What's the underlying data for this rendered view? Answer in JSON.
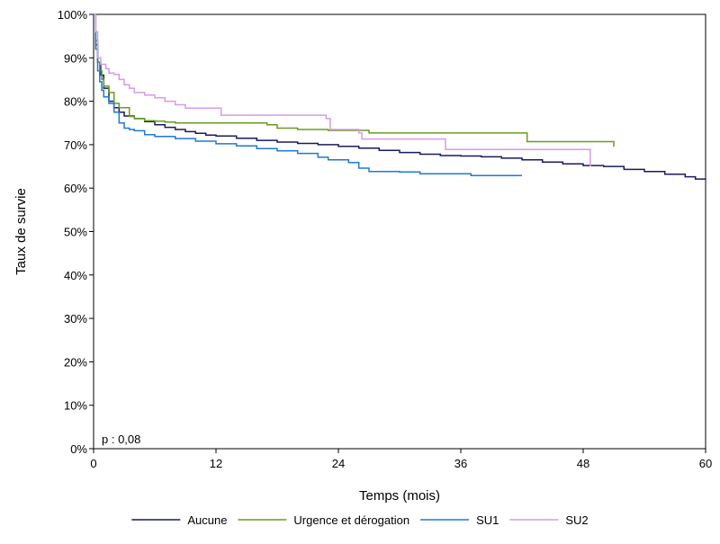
{
  "chart_data": {
    "type": "line",
    "step": true,
    "xlabel": "Temps (mois)",
    "ylabel": "Taux de survie",
    "xlim": [
      0,
      60
    ],
    "ylim": [
      0,
      100
    ],
    "x_ticks": [
      0,
      12,
      24,
      36,
      48,
      60
    ],
    "y_ticks": [
      0,
      10,
      20,
      30,
      40,
      50,
      60,
      70,
      80,
      90,
      100
    ],
    "y_tick_labels": [
      "0%",
      "10%",
      "20%",
      "30%",
      "40%",
      "50%",
      "60%",
      "70%",
      "80%",
      "90%",
      "100%"
    ],
    "grid": false,
    "legend_position": "bottom",
    "annotation": "p : 0,08",
    "series": [
      {
        "name": "Aucune",
        "color": "#1a1a5e",
        "points": [
          [
            0,
            100
          ],
          [
            0.2,
            93
          ],
          [
            0.4,
            89
          ],
          [
            0.7,
            86
          ],
          [
            1,
            83
          ],
          [
            1.5,
            80
          ],
          [
            2,
            78.5
          ],
          [
            2.5,
            77.5
          ],
          [
            3,
            76.6
          ],
          [
            4,
            76
          ],
          [
            5,
            75.3
          ],
          [
            6,
            74.6
          ],
          [
            7,
            74
          ],
          [
            8,
            73.5
          ],
          [
            9,
            73
          ],
          [
            10,
            72.6
          ],
          [
            11,
            72.2
          ],
          [
            12,
            72
          ],
          [
            14,
            71.5
          ],
          [
            16,
            71
          ],
          [
            18,
            70.6
          ],
          [
            20,
            70.3
          ],
          [
            22,
            70
          ],
          [
            24,
            69.6
          ],
          [
            26,
            69.2
          ],
          [
            28,
            68.7
          ],
          [
            30,
            68.2
          ],
          [
            32,
            67.8
          ],
          [
            34,
            67.5
          ],
          [
            36,
            67.4
          ],
          [
            38,
            67.2
          ],
          [
            40,
            66.9
          ],
          [
            42,
            66.5
          ],
          [
            44,
            66
          ],
          [
            46,
            65.6
          ],
          [
            48,
            65.2
          ],
          [
            50,
            65
          ],
          [
            52,
            64.3
          ],
          [
            54,
            63.8
          ],
          [
            56,
            63.2
          ],
          [
            58,
            62.6
          ],
          [
            59,
            62.1
          ],
          [
            60,
            62
          ]
        ]
      },
      {
        "name": "Urgence et dérogation",
        "color": "#6a9a1f",
        "points": [
          [
            0,
            100
          ],
          [
            0.2,
            94
          ],
          [
            0.4,
            89
          ],
          [
            0.6,
            87
          ],
          [
            0.8,
            85
          ],
          [
            1,
            83.5
          ],
          [
            1.5,
            82
          ],
          [
            2,
            79.5
          ],
          [
            2.5,
            78.5
          ],
          [
            3,
            78.5
          ],
          [
            3.5,
            76.5
          ],
          [
            4,
            76
          ],
          [
            5,
            75.5
          ],
          [
            6,
            75.4
          ],
          [
            7,
            75.2
          ],
          [
            8,
            75
          ],
          [
            10,
            75
          ],
          [
            13,
            75
          ],
          [
            16,
            75
          ],
          [
            17,
            74.6
          ],
          [
            18,
            73.8
          ],
          [
            20,
            73.5
          ],
          [
            22,
            73.5
          ],
          [
            23,
            73.3
          ],
          [
            26,
            73.3
          ],
          [
            27,
            72.7
          ],
          [
            30,
            72.7
          ],
          [
            35,
            72.7
          ],
          [
            38,
            72.7
          ],
          [
            42,
            72.7
          ],
          [
            42.5,
            70.7
          ],
          [
            48,
            70.7
          ],
          [
            50,
            70.7
          ],
          [
            51,
            69.5
          ]
        ]
      },
      {
        "name": "SU1",
        "color": "#1f78d8",
        "points": [
          [
            0,
            100
          ],
          [
            0.2,
            92
          ],
          [
            0.4,
            87
          ],
          [
            0.6,
            84.5
          ],
          [
            0.8,
            82.5
          ],
          [
            1,
            81
          ],
          [
            1.5,
            79.5
          ],
          [
            2,
            77.5
          ],
          [
            2.5,
            75
          ],
          [
            3,
            73.8
          ],
          [
            3.5,
            73.5
          ],
          [
            4,
            73.2
          ],
          [
            5,
            72.3
          ],
          [
            6,
            71.9
          ],
          [
            8,
            71.4
          ],
          [
            10,
            70.8
          ],
          [
            12,
            70.2
          ],
          [
            14,
            69.7
          ],
          [
            16,
            69.1
          ],
          [
            18,
            68.6
          ],
          [
            20,
            68
          ],
          [
            22,
            67.1
          ],
          [
            23,
            66.5
          ],
          [
            25,
            65.9
          ],
          [
            26,
            64.6
          ],
          [
            27,
            63.8
          ],
          [
            30,
            63.7
          ],
          [
            32,
            63.3
          ],
          [
            36,
            63.3
          ],
          [
            37,
            62.9
          ],
          [
            42,
            62.9
          ]
        ]
      },
      {
        "name": "SU2",
        "color": "#d49be8",
        "points": [
          [
            0,
            100
          ],
          [
            0.2,
            96
          ],
          [
            0.4,
            90
          ],
          [
            0.7,
            88.5
          ],
          [
            1.2,
            87.5
          ],
          [
            1.5,
            86.5
          ],
          [
            2,
            86.2
          ],
          [
            2.5,
            85
          ],
          [
            3,
            83.8
          ],
          [
            3.5,
            83
          ],
          [
            4,
            82
          ],
          [
            5,
            81.4
          ],
          [
            6,
            80.8
          ],
          [
            7,
            80
          ],
          [
            8,
            79.2
          ],
          [
            9,
            78.4
          ],
          [
            10,
            78.4
          ],
          [
            12,
            78.4
          ],
          [
            12.5,
            76.8
          ],
          [
            15,
            76.8
          ],
          [
            20,
            76.8
          ],
          [
            22,
            76.8
          ],
          [
            22.8,
            76
          ],
          [
            23.2,
            73.5
          ],
          [
            25,
            73.5
          ],
          [
            26,
            72.7
          ],
          [
            26.3,
            71.3
          ],
          [
            30,
            71.3
          ],
          [
            34,
            71.3
          ],
          [
            34.5,
            68.9
          ],
          [
            40,
            68.9
          ],
          [
            46,
            68.9
          ],
          [
            48.5,
            68.9
          ],
          [
            48.7,
            65
          ]
        ]
      }
    ]
  }
}
